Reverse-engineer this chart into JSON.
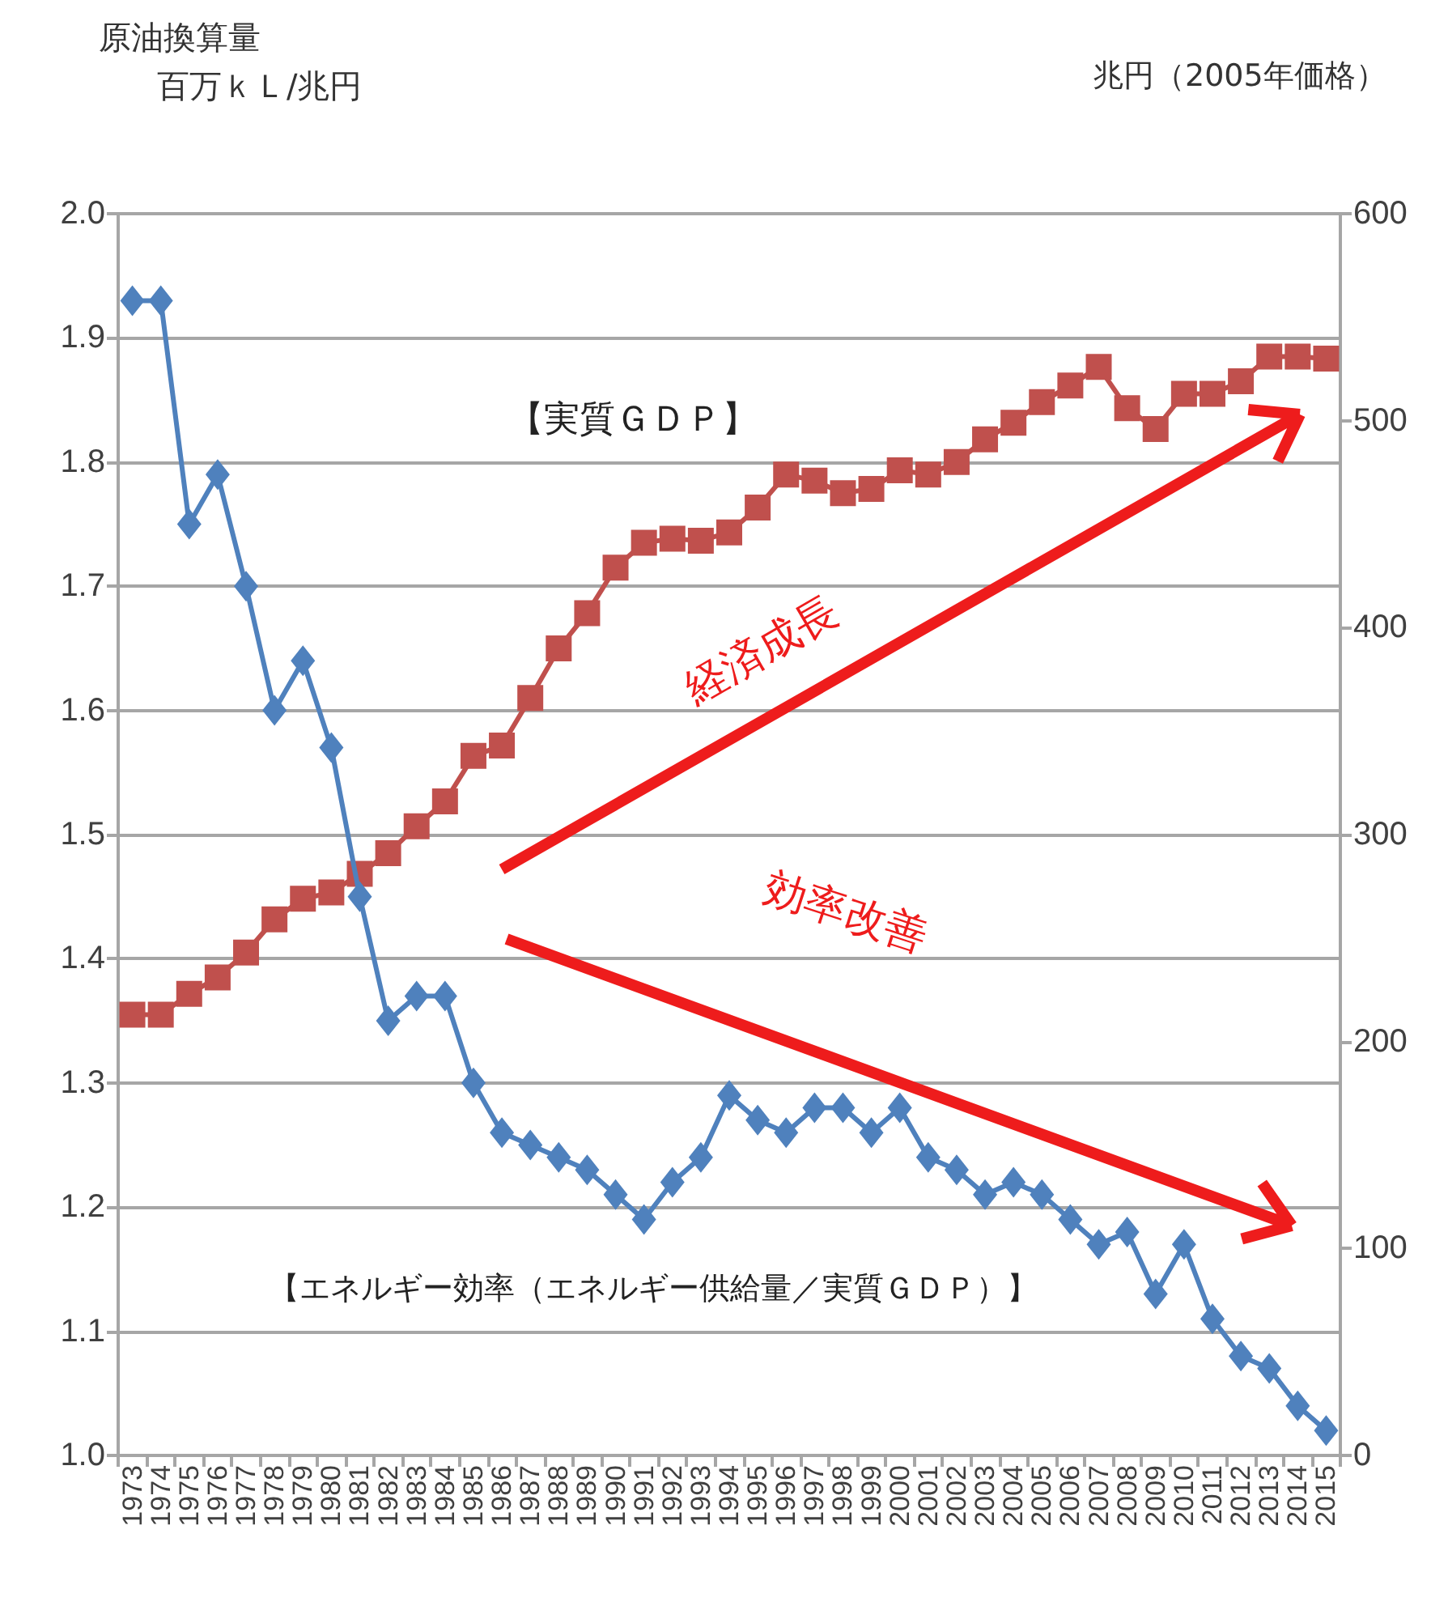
{
  "chart_data": {
    "type": "line",
    "ylabel": "原油換算量百万ｋＬ/兆円",
    "y2label": "兆円（2005年価格）",
    "categories": [
      "1973",
      "1974",
      "1975",
      "1976",
      "1977",
      "1978",
      "1979",
      "1980",
      "1981",
      "1982",
      "1983",
      "1984",
      "1985",
      "1986",
      "1987",
      "1988",
      "1989",
      "1990",
      "1991",
      "1992",
      "1993",
      "1994",
      "1995",
      "1996",
      "1997",
      "1998",
      "1999",
      "2000",
      "2001",
      "2002",
      "2003",
      "2004",
      "2005",
      "2006",
      "2007",
      "2008",
      "2009",
      "2010",
      "2011",
      "2012",
      "2013",
      "2014",
      "2015"
    ],
    "series": [
      {
        "name": "【実質ＧＤＰ】",
        "color": "#c0504d",
        "marker": "square",
        "axis": "y2",
        "values": [
          213,
          213,
          223,
          231,
          243,
          259,
          269,
          272,
          281,
          291,
          304,
          316,
          338,
          343,
          366,
          390,
          407,
          429,
          441,
          443,
          442,
          446,
          458,
          474,
          471,
          465,
          467,
          476,
          474,
          480,
          491,
          499,
          509,
          517,
          526,
          506,
          496,
          513,
          513,
          519,
          531,
          531,
          530
        ]
      },
      {
        "name": "【エネルギー効率（エネルギー供給量／実質ＧＤＰ）】",
        "color": "#4f81bd",
        "marker": "diamond",
        "values": [
          1.93,
          1.93,
          1.75,
          1.79,
          1.7,
          1.6,
          1.64,
          1.57,
          1.45,
          1.35,
          1.37,
          1.37,
          1.3,
          1.26,
          1.25,
          1.24,
          1.23,
          1.21,
          1.19,
          1.22,
          1.24,
          1.29,
          1.27,
          1.26,
          1.28,
          1.28,
          1.26,
          1.28,
          1.24,
          1.23,
          1.21,
          1.22,
          1.21,
          1.19,
          1.17,
          1.18,
          1.13,
          1.17,
          1.11,
          1.08,
          1.07,
          1.04,
          1.02
        ]
      }
    ],
    "ylim": [
      1,
      2
    ],
    "yticks": [
      {
        "value": 1,
        "label": "1.0"
      },
      1.1,
      1.2,
      1.3,
      1.4,
      1.5,
      1.6,
      1.7,
      1.8,
      1.9,
      {
        "value": 2,
        "label": "2.0"
      }
    ],
    "y2lim": [
      0,
      600
    ],
    "y2ticks": [
      0,
      100,
      200,
      300,
      400,
      500,
      600
    ],
    "grid": "y",
    "annotations": [
      "経済成長",
      "効率改善"
    ]
  }
}
